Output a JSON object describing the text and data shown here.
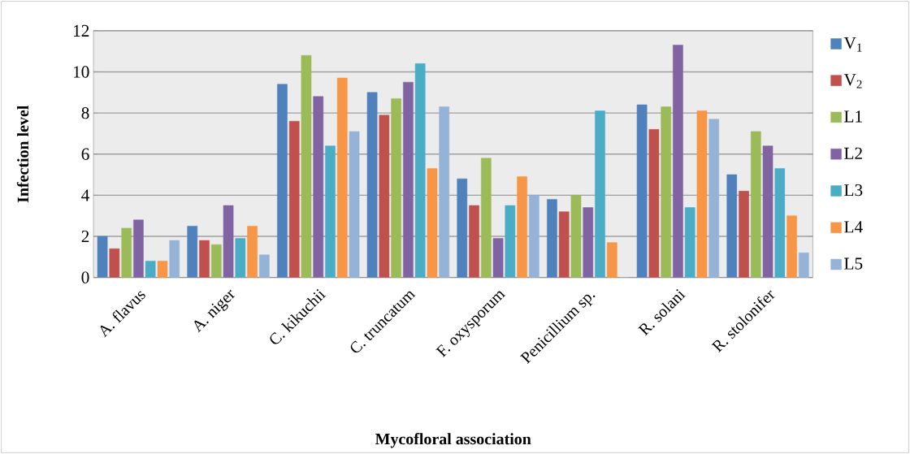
{
  "chart_data": {
    "type": "bar",
    "xlabel": "Mycofloral association",
    "ylabel": "Infection level",
    "categories": [
      "A. flavus",
      "A. niger",
      "C. kikuchii",
      "C. truncatum",
      "F. oxysporum",
      "Penicillium sp.",
      "R. solani",
      "R. stolonifer"
    ],
    "series": [
      {
        "name": "V$_{1}$",
        "color": "#4f81bd",
        "values": [
          2.0,
          2.5,
          9.4,
          9.0,
          4.8,
          3.8,
          8.4,
          5.0
        ]
      },
      {
        "name": "V$_{2}$",
        "color": "#c0504d",
        "values": [
          1.4,
          1.8,
          7.6,
          7.9,
          3.5,
          3.2,
          7.2,
          4.2
        ]
      },
      {
        "name": "L1",
        "color": "#9bbb59",
        "values": [
          2.4,
          1.6,
          10.8,
          8.7,
          5.8,
          4.0,
          8.3,
          7.1
        ]
      },
      {
        "name": "L2",
        "color": "#8064a2",
        "values": [
          2.8,
          3.5,
          8.8,
          9.5,
          1.9,
          3.4,
          11.3,
          6.4
        ]
      },
      {
        "name": "L3",
        "color": "#4bacc6",
        "values": [
          0.8,
          1.9,
          6.4,
          10.4,
          3.5,
          8.1,
          3.4,
          5.3
        ]
      },
      {
        "name": "L4",
        "color": "#f79646",
        "values": [
          0.8,
          2.5,
          9.7,
          5.3,
          4.9,
          1.7,
          8.1,
          3.0
        ]
      },
      {
        "name": "L5",
        "color": "#95b3d7",
        "values": [
          1.8,
          1.1,
          7.1,
          8.3,
          4.0,
          0,
          7.7,
          1.2
        ]
      }
    ],
    "ylim": [
      0,
      12
    ],
    "yticks": [
      0,
      2,
      4,
      6,
      8,
      10,
      12
    ],
    "grid": "y",
    "legend": "right"
  }
}
